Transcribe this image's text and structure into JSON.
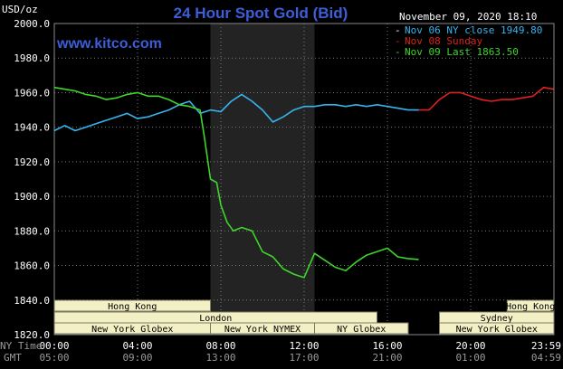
{
  "chart_data": {
    "type": "line",
    "title": "24 Hour Spot Gold (Bid)",
    "brand": "www.kitco.com",
    "ylabel": "USD/oz",
    "timestamp": "November 09, 2020 18:10",
    "ylim": [
      1820,
      2000
    ],
    "y_ticks": [
      "2000.0",
      "1980.0",
      "1960.0",
      "1940.0",
      "1920.0",
      "1900.0",
      "1880.0",
      "1860.0",
      "1840.0",
      "1820.0"
    ],
    "xlim": [
      0,
      24
    ],
    "x_ticks_ny": [
      "00:00",
      "04:00",
      "08:00",
      "12:00",
      "16:00",
      "20:00",
      "23:59"
    ],
    "x_ticks_gmt": [
      "05:00",
      "09:00",
      "13:00",
      "17:00",
      "21:00",
      "01:00",
      "04:59"
    ],
    "x_axis_labels": [
      "NY Time",
      "GMT"
    ],
    "grid": true,
    "legend_position": "top-right",
    "series": [
      {
        "name": "Nov 06 NY close 1949.80",
        "color": "#36b4f0",
        "x": [
          0,
          0.5,
          1,
          1.5,
          2,
          2.5,
          3,
          3.5,
          4,
          4.5,
          5,
          5.5,
          6,
          6.5,
          7,
          7.5,
          8,
          8.5,
          9,
          9.5,
          10,
          10.5,
          11,
          11.5,
          12,
          12.5,
          13,
          13.5,
          14,
          14.5,
          15,
          15.5,
          16,
          16.5,
          17,
          17.5
        ],
        "y": [
          1938,
          1941,
          1938,
          1940,
          1942,
          1944,
          1946,
          1948,
          1945,
          1946,
          1948,
          1950,
          1953,
          1955,
          1948,
          1950,
          1949,
          1955,
          1959,
          1955,
          1950,
          1943,
          1946,
          1950,
          1952,
          1952,
          1953,
          1953,
          1952,
          1953,
          1952,
          1953,
          1952,
          1951,
          1950,
          1950
        ]
      },
      {
        "name": "Nov 08 Sunday",
        "color": "#e0201c",
        "x": [
          17.5,
          18,
          18.5,
          19,
          19.5,
          20,
          20.5,
          21,
          21.5,
          22,
          22.5,
          23,
          23.5,
          23.98
        ],
        "y": [
          1950,
          1950,
          1956,
          1960,
          1960,
          1958,
          1956,
          1955,
          1956,
          1956,
          1957,
          1958,
          1963,
          1962
        ]
      },
      {
        "name": "Nov 09 Last 1863.50",
        "color": "#3ed62a",
        "x": [
          0,
          0.5,
          1,
          1.5,
          2,
          2.5,
          3,
          3.5,
          4,
          4.5,
          5,
          5.5,
          6,
          6.5,
          7,
          7.2,
          7.5,
          7.8,
          8,
          8.3,
          8.6,
          9,
          9.5,
          10,
          10.5,
          11,
          11.5,
          12,
          12.5,
          13,
          13.5,
          14,
          14.5,
          15,
          15.5,
          16,
          16.5,
          17,
          17.5
        ],
        "y": [
          1963,
          1962,
          1961,
          1959,
          1958,
          1956,
          1957,
          1959,
          1960,
          1958,
          1958,
          1956,
          1953,
          1952,
          1950,
          1935,
          1910,
          1908,
          1895,
          1885,
          1880,
          1882,
          1880,
          1868,
          1865,
          1858,
          1855,
          1853,
          1867,
          1863,
          1859,
          1857,
          1862,
          1866,
          1868,
          1870,
          1865,
          1864,
          1863.5
        ]
      }
    ],
    "market_rows": [
      {
        "name": "Hong Kong",
        "segments": [
          [
            0,
            7.5
          ],
          [
            21.75,
            24
          ]
        ]
      },
      {
        "name": "London",
        "segments": [
          [
            0,
            15.5
          ]
        ]
      },
      {
        "name": "Sydney",
        "segments": [
          [
            18.5,
            24
          ]
        ]
      },
      {
        "name": "New York Globex",
        "segments": [
          [
            0,
            7.5
          ],
          [
            18.5,
            24
          ]
        ]
      },
      {
        "name": "New York NYMEX",
        "segments": [
          [
            7.5,
            12.5
          ]
        ]
      },
      {
        "name": "NY Globex",
        "segments": [
          [
            12.5,
            17
          ]
        ]
      }
    ]
  }
}
